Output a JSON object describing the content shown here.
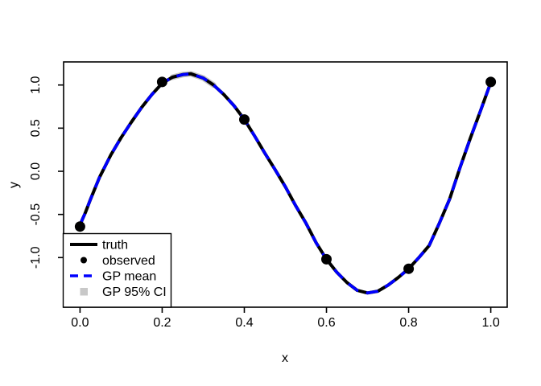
{
  "chart_data": {
    "type": "line",
    "title": "",
    "xlabel": "x",
    "ylabel": "y",
    "xlim": [
      -0.04,
      1.04
    ],
    "ylim": [
      -1.52,
      1.24
    ],
    "grid": false,
    "x_ticks": [
      0.0,
      0.2,
      0.4,
      0.6,
      0.8,
      1.0
    ],
    "x_tick_labels": [
      "0.0",
      "0.2",
      "0.4",
      "0.6",
      "0.8",
      "1.0"
    ],
    "y_ticks": [
      -1.0,
      -0.5,
      0.0,
      0.5,
      1.0
    ],
    "y_tick_labels": [
      "-1.0",
      "-0.5",
      "0.0",
      "0.5",
      "1.0"
    ],
    "series": [
      {
        "name": "truth",
        "type": "line",
        "style": "solid",
        "color": "#000000",
        "x": [
          0.0,
          0.013,
          0.025,
          0.0475,
          0.075,
          0.1,
          0.125,
          0.15,
          0.175,
          0.2,
          0.225,
          0.25,
          0.27,
          0.3,
          0.325,
          0.35,
          0.375,
          0.4,
          0.425,
          0.45,
          0.475,
          0.5,
          0.525,
          0.55,
          0.575,
          0.6,
          0.625,
          0.65,
          0.675,
          0.7,
          0.725,
          0.75,
          0.775,
          0.8,
          0.825,
          0.85,
          0.875,
          0.9,
          0.925,
          0.95,
          0.975,
          1.0
        ],
        "y": [
          -0.62,
          -0.48,
          -0.33,
          -0.07,
          0.19,
          0.39,
          0.57,
          0.74,
          0.89,
          1.02,
          1.09,
          1.12,
          1.13,
          1.08,
          1.0,
          0.89,
          0.76,
          0.6,
          0.41,
          0.21,
          0.02,
          -0.18,
          -0.4,
          -0.6,
          -0.83,
          -1.02,
          -1.17,
          -1.29,
          -1.38,
          -1.41,
          -1.39,
          -1.32,
          -1.23,
          -1.13,
          -1.0,
          -0.86,
          -0.6,
          -0.32,
          0.04,
          0.38,
          0.7,
          1.03
        ]
      },
      {
        "name": "GP mean",
        "type": "line",
        "style": "dashed",
        "color": "#0000FF",
        "overlaps_truth": true
      },
      {
        "name": "GP 95% CI",
        "type": "band",
        "style": "filled",
        "color": "#C8C8C8",
        "overlaps_truth": true,
        "visible_extent_x": [
          0.21,
          0.34
        ]
      }
    ],
    "observed": {
      "name": "observed",
      "type": "scatter",
      "marker": "filled-circle",
      "color": "#000000",
      "x": [
        0.0,
        0.2,
        0.4,
        0.6,
        0.8,
        1.0
      ],
      "y": [
        -0.64,
        1.035,
        0.6,
        -1.02,
        -1.13,
        1.035
      ]
    },
    "legend": {
      "position": "bottom-left",
      "entries": [
        {
          "label": "truth",
          "swatch": "solid-line",
          "color": "#000000"
        },
        {
          "label": "observed",
          "swatch": "point",
          "color": "#000000"
        },
        {
          "label": "GP mean",
          "swatch": "dashed-line",
          "color": "#0000FF"
        },
        {
          "label": "GP 95% CI",
          "swatch": "filled-square",
          "color": "#C8C8C8"
        }
      ]
    }
  }
}
